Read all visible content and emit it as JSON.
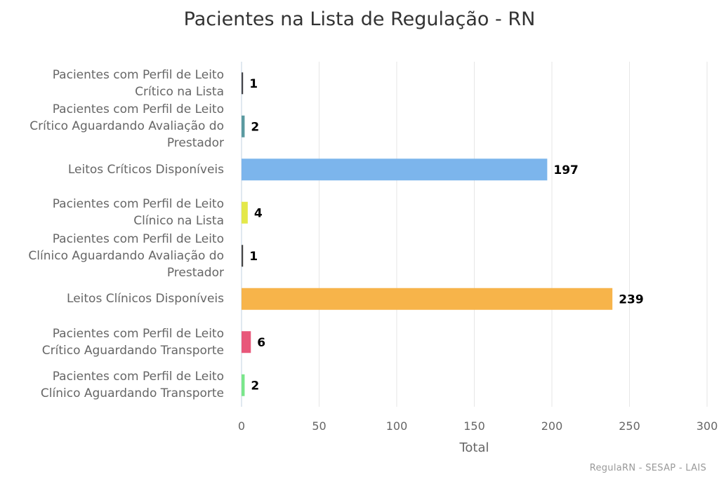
{
  "chart_data": {
    "type": "bar",
    "orientation": "horizontal",
    "title": "Pacientes na Lista de Regulação - RN",
    "xlabel": "Total",
    "ylabel": "",
    "xlim": [
      0,
      300
    ],
    "ticks": [
      "0",
      "50",
      "100",
      "150",
      "200",
      "250",
      "300"
    ],
    "grid": true,
    "categories": [
      [
        "Pacientes com Perfil de Leito",
        "Crítico na Lista"
      ],
      [
        "Pacientes com Perfil de Leito",
        "Crítico Aguardando Avaliação do",
        "Prestador"
      ],
      [
        "Leitos Críticos Disponíveis"
      ],
      [
        "Pacientes com Perfil de Leito",
        "Clínico na Lista"
      ],
      [
        "Pacientes com Perfil de Leito",
        "Clínico Aguardando Avaliação do",
        "Prestador"
      ],
      [
        "Leitos Clínicos Disponíveis"
      ],
      [
        "Pacientes com Perfil de Leito",
        "Crítico Aguardando Transporte"
      ],
      [
        "Pacientes com Perfil de Leito",
        "Clínico Aguardando Transporte"
      ]
    ],
    "values": [
      1,
      2,
      197,
      4,
      1,
      239,
      6,
      2
    ],
    "colors": [
      "#434348",
      "#5b9aa0",
      "#7cb5ec",
      "#e4e84a",
      "#444444",
      "#f7b44a",
      "#e8577a",
      "#7ae68a"
    ],
    "credits": "RegulaRN - SESAP - LAIS"
  }
}
